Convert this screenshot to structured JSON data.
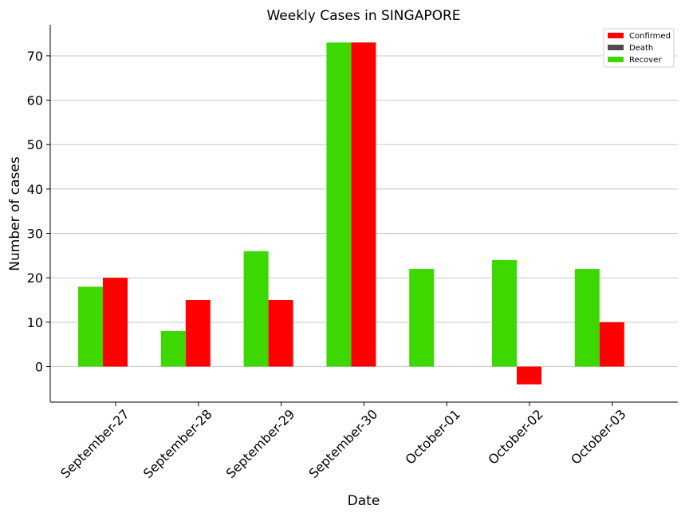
{
  "chart_data": {
    "type": "bar",
    "title": "Weekly Cases in SINGAPORE",
    "xlabel": "Date",
    "ylabel": "Number of cases",
    "categories": [
      "September-27",
      "September-28",
      "September-29",
      "September-30",
      "October-01",
      "October-02",
      "October-03"
    ],
    "series": [
      {
        "name": "Confirmed",
        "color": "#ff0000",
        "values": [
          20,
          15,
          15,
          73,
          0,
          -4,
          10
        ]
      },
      {
        "name": "Death",
        "color": "#4d4d4d",
        "values": [
          0,
          0,
          0,
          0,
          0,
          0,
          0
        ]
      },
      {
        "name": "Recover",
        "color": "#3dd800",
        "values": [
          18,
          8,
          26,
          73,
          22,
          24,
          22
        ]
      }
    ],
    "ylim": [
      -8,
      77
    ],
    "yticks": [
      0,
      10,
      20,
      30,
      40,
      50,
      60,
      70
    ],
    "grid": "horizontal",
    "legend_position": "top-right"
  }
}
